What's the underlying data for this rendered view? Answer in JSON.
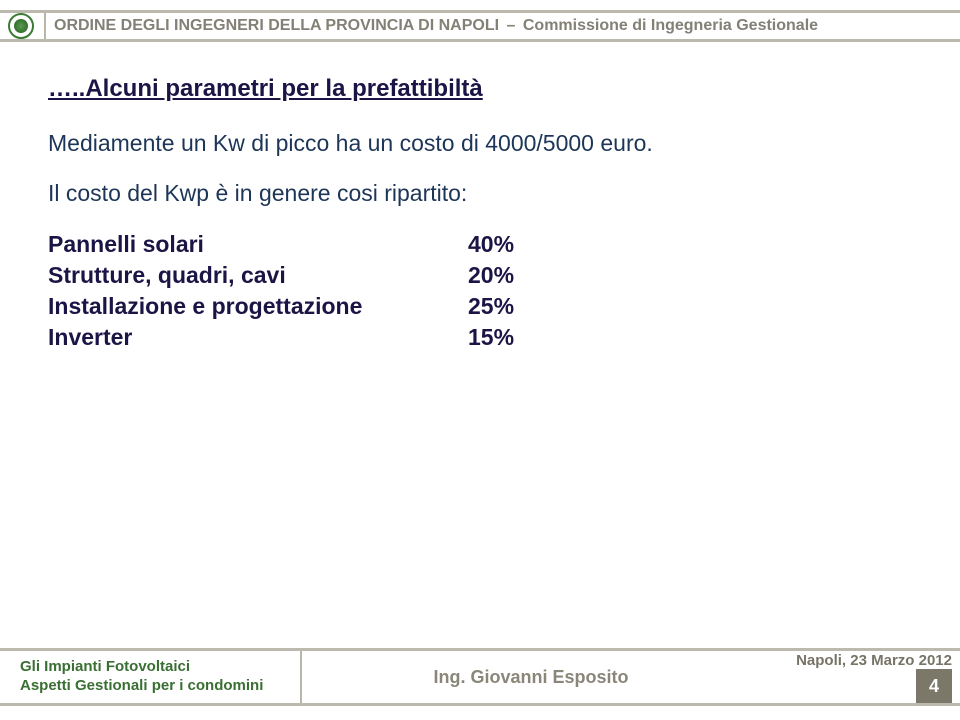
{
  "colors": {
    "band_border": "#bcbaae",
    "header_text": "#838076",
    "divider": "#b8b6aa",
    "title_color": "#1b1545",
    "body_color": "#1d3557",
    "row_text": "#1b1545",
    "footer_left_text": "#396f33",
    "footer_center_text": "#8a877a",
    "footer_right_text": "#777367",
    "page_box_bg": "#7b7769"
  },
  "header": {
    "org": "ORDINE DEGLI INGEGNERI DELLA PROVINCIA DI NAPOLI",
    "commission": "Commissione di Ingegneria Gestionale"
  },
  "slide": {
    "title": "…..Alcuni parametri per la prefattibiltà",
    "intro": "Mediamente un Kw di picco ha un costo di 4000/5000 euro.",
    "lead": "Il costo del Kwp è in genere cosi ripartito:",
    "rows": [
      {
        "label": "Pannelli solari",
        "pct": "40%"
      },
      {
        "label": "Strutture, quadri, cavi",
        "pct": "20%"
      },
      {
        "label": "Installazione e progettazione",
        "pct": "25%"
      },
      {
        "label": "Inverter",
        "pct": "15%"
      }
    ]
  },
  "footer": {
    "left_line1": "Gli Impianti Fotovoltaici",
    "left_line2": "Aspetti Gestionali per i condomini",
    "center": "Ing. Giovanni Esposito",
    "right": "Napoli, 23 Marzo 2012",
    "page_number": "4"
  }
}
